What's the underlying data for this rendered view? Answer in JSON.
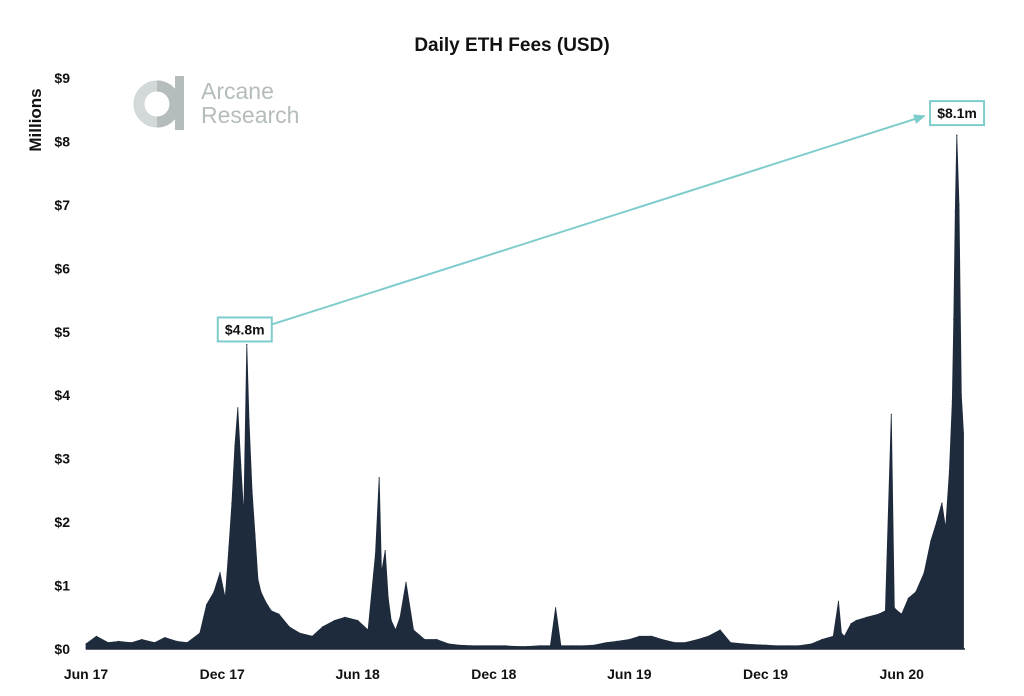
{
  "chart_data": {
    "type": "area",
    "title": "Daily ETH Fees (USD)",
    "xlabel": "",
    "ylabel": "Millions",
    "y_tick_labels": [
      "$0",
      "$1",
      "$2",
      "$3",
      "$4",
      "$5",
      "$6",
      "$7",
      "$8",
      "$9"
    ],
    "y_tick_values": [
      0,
      1,
      2,
      3,
      4,
      5,
      6,
      7,
      8,
      9
    ],
    "ylim": [
      0,
      9
    ],
    "x_tick_labels": [
      "Jun 17",
      "Dec 17",
      "Jun 18",
      "Dec 18",
      "Jun 19",
      "Dec 19",
      "Jun 20"
    ],
    "x_tick_dates": [
      "2017-06-01",
      "2017-12-01",
      "2018-06-01",
      "2018-12-01",
      "2019-06-01",
      "2019-12-01",
      "2020-06-01"
    ],
    "xlim": [
      "2017-06-01",
      "2020-08-25"
    ],
    "grid": false,
    "series_color": "#1e2b3c",
    "series": [
      {
        "x": [
          "2017-06-01",
          "2017-06-15",
          "2017-07-01",
          "2017-07-15",
          "2017-08-01",
          "2017-08-15",
          "2017-09-01",
          "2017-09-15",
          "2017-10-01",
          "2017-10-15",
          "2017-11-01",
          "2017-11-10",
          "2017-11-20",
          "2017-11-28",
          "2017-12-05",
          "2017-12-10",
          "2017-12-14",
          "2017-12-18",
          "2017-12-22",
          "2017-12-26",
          "2017-12-30",
          "2018-01-03",
          "2018-01-06",
          "2018-01-10",
          "2018-01-14",
          "2018-01-18",
          "2018-01-22",
          "2018-01-28",
          "2018-02-05",
          "2018-02-15",
          "2018-03-01",
          "2018-03-15",
          "2018-04-01",
          "2018-04-15",
          "2018-05-01",
          "2018-05-15",
          "2018-06-01",
          "2018-06-15",
          "2018-06-25",
          "2018-06-30",
          "2018-07-03",
          "2018-07-08",
          "2018-07-12",
          "2018-07-16",
          "2018-07-22",
          "2018-07-28",
          "2018-08-05",
          "2018-08-15",
          "2018-08-30",
          "2018-09-15",
          "2018-10-01",
          "2018-10-15",
          "2018-11-01",
          "2018-11-15",
          "2018-12-01",
          "2018-12-15",
          "2019-01-01",
          "2019-01-15",
          "2019-02-01",
          "2019-02-15",
          "2019-02-22",
          "2019-03-01",
          "2019-03-15",
          "2019-04-01",
          "2019-04-15",
          "2019-05-01",
          "2019-05-15",
          "2019-06-01",
          "2019-06-15",
          "2019-07-01",
          "2019-07-15",
          "2019-08-01",
          "2019-08-15",
          "2019-09-01",
          "2019-09-15",
          "2019-10-01",
          "2019-10-15",
          "2019-11-01",
          "2019-11-15",
          "2019-12-01",
          "2019-12-15",
          "2020-01-01",
          "2020-01-15",
          "2020-02-01",
          "2020-02-15",
          "2020-03-01",
          "2020-03-08",
          "2020-03-12",
          "2020-03-16",
          "2020-03-25",
          "2020-04-01",
          "2020-04-15",
          "2020-05-01",
          "2020-05-10",
          "2020-05-18",
          "2020-05-22",
          "2020-05-26",
          "2020-06-01",
          "2020-06-10",
          "2020-06-20",
          "2020-07-01",
          "2020-07-10",
          "2020-07-18",
          "2020-07-25",
          "2020-07-30",
          "2020-08-04",
          "2020-08-08",
          "2020-08-10",
          "2020-08-12",
          "2020-08-14",
          "2020-08-17",
          "2020-08-20",
          "2020-08-23"
        ],
        "values": [
          0.08,
          0.2,
          0.1,
          0.12,
          0.1,
          0.15,
          0.1,
          0.18,
          0.12,
          0.1,
          0.25,
          0.7,
          0.9,
          1.2,
          0.8,
          1.6,
          2.3,
          3.2,
          3.8,
          2.9,
          2.1,
          4.8,
          3.6,
          2.5,
          1.8,
          1.1,
          0.9,
          0.75,
          0.6,
          0.55,
          0.35,
          0.25,
          0.2,
          0.35,
          0.45,
          0.5,
          0.45,
          0.3,
          1.5,
          2.7,
          1.2,
          1.55,
          0.8,
          0.45,
          0.3,
          0.5,
          1.05,
          0.3,
          0.15,
          0.15,
          0.08,
          0.06,
          0.05,
          0.05,
          0.05,
          0.05,
          0.04,
          0.04,
          0.05,
          0.05,
          0.65,
          0.05,
          0.05,
          0.05,
          0.06,
          0.1,
          0.12,
          0.15,
          0.2,
          0.2,
          0.15,
          0.1,
          0.1,
          0.15,
          0.2,
          0.3,
          0.1,
          0.08,
          0.07,
          0.06,
          0.05,
          0.05,
          0.05,
          0.08,
          0.15,
          0.2,
          0.75,
          0.25,
          0.2,
          0.4,
          0.45,
          0.5,
          0.55,
          0.6,
          3.7,
          0.65,
          0.6,
          0.55,
          0.8,
          0.9,
          1.2,
          1.7,
          2.0,
          2.3,
          1.9,
          2.8,
          3.9,
          5.2,
          6.9,
          8.1,
          7.0,
          4.0,
          3.4
        ]
      }
    ],
    "annotations": [
      {
        "label": "$4.8m",
        "date": "2018-01-03",
        "value": 4.8
      },
      {
        "label": "$8.1m",
        "date": "2020-08-17",
        "value": 8.1
      }
    ]
  },
  "logo": {
    "line1": "Arcane",
    "line2": "Research"
  },
  "colors": {
    "accent": "#7fcccc",
    "logo_gray": "#b4bcbc",
    "logo_light": "#d3d9d9"
  },
  "icons": {
    "logo": "arcane-research-logo-icon"
  }
}
